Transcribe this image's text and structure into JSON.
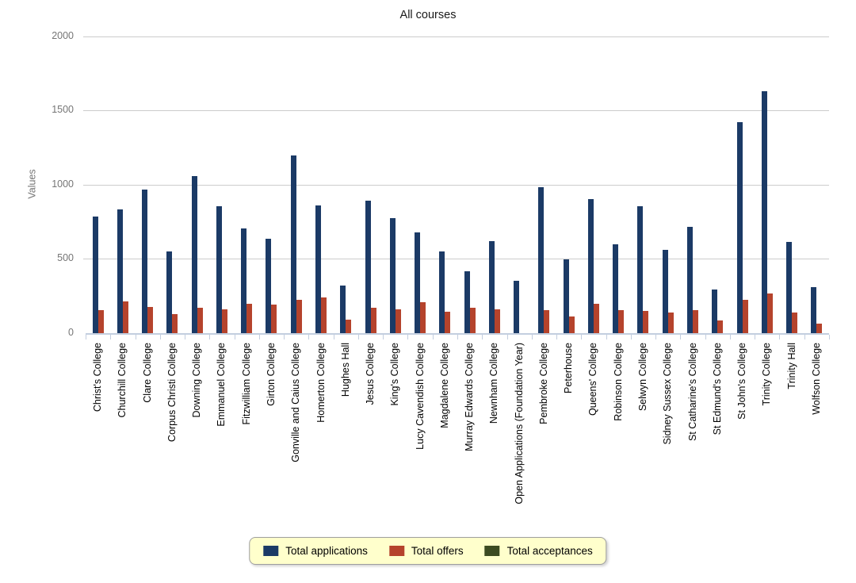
{
  "title": "All courses",
  "y_axis": {
    "title": "Values",
    "tick_labels": [
      "0",
      "500",
      "1000",
      "1500",
      "2000"
    ]
  },
  "legend": {
    "background": "#FFFFCC",
    "entries": [
      "Total applications",
      "Total offers",
      "Total acceptances"
    ]
  },
  "colors": {
    "applications": "#1B3A66",
    "offers": "#B5432C",
    "acceptances": "#3C4B22",
    "gridline": "#CCCCCC",
    "axis": "#C3CEDF",
    "axis_text": "#757575"
  },
  "chart_data": {
    "type": "bar",
    "title": "All courses",
    "xlabel": "",
    "ylabel": "Values",
    "ylim": [
      0,
      2000
    ],
    "yticks": [
      0,
      500,
      1000,
      1500,
      2000
    ],
    "grid": true,
    "legend_position": "bottom",
    "categories": [
      "Christ's College",
      "Churchill College",
      "Clare College",
      "Corpus Christi College",
      "Downing College",
      "Emmanuel College",
      "Fitzwilliam College",
      "Girton College",
      "Gonville and Caius College",
      "Homerton College",
      "Hughes Hall",
      "Jesus College",
      "King's College",
      "Lucy Cavendish College",
      "Magdalene College",
      "Murray Edwards College",
      "Newnham College",
      "Open Applications (Foundation Year)",
      "Pembroke College",
      "Peterhouse",
      "Queens' College",
      "Robinson College",
      "Selwyn College",
      "Sidney Sussex College",
      "St Catharine's College",
      "St Edmund's College",
      "St John's College",
      "Trinity College",
      "Trinity Hall",
      "Wolfson College"
    ],
    "series": [
      {
        "name": "Total applications",
        "color": "#1B3A66",
        "values": [
          785,
          835,
          965,
          550,
          1060,
          855,
          705,
          635,
          1195,
          860,
          320,
          890,
          775,
          680,
          550,
          415,
          620,
          350,
          985,
          495,
          900,
          595,
          855,
          560,
          715,
          290,
          1420,
          1630,
          615,
          310
        ]
      },
      {
        "name": "Total offers",
        "color": "#B5432C",
        "values": [
          155,
          210,
          175,
          125,
          170,
          160,
          195,
          190,
          220,
          240,
          90,
          170,
          160,
          205,
          140,
          170,
          160,
          0,
          155,
          110,
          195,
          155,
          150,
          135,
          155,
          85,
          220,
          265,
          135,
          60
        ]
      },
      {
        "name": "Total acceptances",
        "color": "#3C4B22",
        "values": [
          0,
          0,
          0,
          0,
          0,
          0,
          0,
          0,
          0,
          0,
          0,
          0,
          0,
          0,
          0,
          0,
          0,
          0,
          0,
          0,
          0,
          0,
          0,
          0,
          0,
          0,
          0,
          0,
          0,
          0
        ]
      }
    ]
  }
}
